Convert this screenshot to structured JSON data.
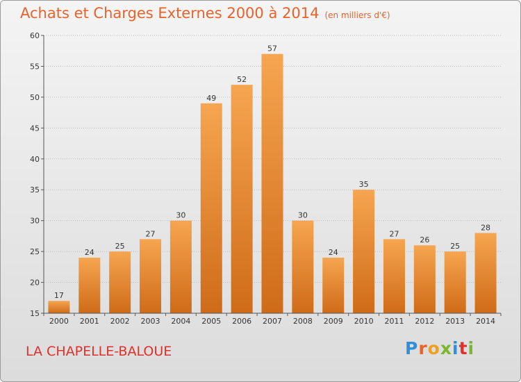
{
  "header": {
    "title": "Achats et Charges Externes 2000 à 2014",
    "unit": "(en milliers d'€)"
  },
  "footer": {
    "location": "LA CHAPELLE-BALOUE",
    "logo": "Proxiti"
  },
  "colors": {
    "bar_light": "#f6a550",
    "bar_dark": "#cf6b18",
    "title": "#e8622b",
    "location": "#e0302a",
    "grid": "#bbbbbb"
  },
  "chart_data": {
    "type": "bar",
    "title": "Achats et Charges Externes 2000 à 2014",
    "subtitle": "(en milliers d'€)",
    "categories": [
      "2000",
      "2001",
      "2002",
      "2003",
      "2004",
      "2005",
      "2006",
      "2007",
      "2008",
      "2009",
      "2010",
      "2011",
      "2012",
      "2013",
      "2014"
    ],
    "values": [
      17,
      24,
      25,
      27,
      30,
      49,
      52,
      57,
      30,
      24,
      35,
      27,
      26,
      25,
      28
    ],
    "ylim": [
      15,
      60
    ],
    "yticks": [
      15,
      20,
      25,
      30,
      35,
      40,
      45,
      50,
      55,
      60
    ],
    "grid": true
  }
}
